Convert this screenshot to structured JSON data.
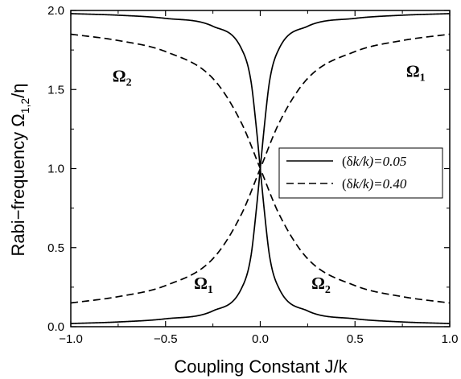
{
  "chart_data": {
    "type": "line",
    "xlabel": "Coupling Constant J/k",
    "ylabel": {
      "prefix": "Rabi−frequency ",
      "symbol": "Ω",
      "subscript": "1,2",
      "suffix": "/η"
    },
    "xlim": [
      -1.0,
      1.0
    ],
    "ylim": [
      0.0,
      2.0
    ],
    "x_ticks": [
      "−1.0",
      "−0.5",
      "0.0",
      "0.5",
      "1.0"
    ],
    "y_ticks": [
      "0.0",
      "0.5",
      "1.0",
      "1.5",
      "2.0"
    ],
    "grid": false,
    "legend_position": "center-right",
    "legend": [
      {
        "style": "solid",
        "open": "(δ",
        "italic": "k/k",
        "close": ")=0.05"
      },
      {
        "style": "dashed",
        "open": "(δ",
        "italic": "k/k",
        "close": ")=0.40"
      }
    ],
    "series": [
      {
        "label": "Ω1, (δk/k)=0.05",
        "style": "solid",
        "x": [
          -1.0,
          -0.75,
          -0.5,
          -0.25,
          -0.1,
          -0.05,
          -0.02,
          0.0,
          0.02,
          0.05,
          0.1,
          0.25,
          0.5,
          0.75,
          1.0
        ],
        "y": [
          0.02,
          0.03,
          0.05,
          0.1,
          0.24,
          0.44,
          0.75,
          1.0,
          1.25,
          1.56,
          1.76,
          1.9,
          1.95,
          1.97,
          1.98
        ]
      },
      {
        "label": "Ω2, (δk/k)=0.05",
        "style": "solid",
        "x": [
          -1.0,
          -0.75,
          -0.5,
          -0.25,
          -0.1,
          -0.05,
          -0.02,
          0.0,
          0.02,
          0.05,
          0.1,
          0.25,
          0.5,
          0.75,
          1.0
        ],
        "y": [
          1.98,
          1.97,
          1.95,
          1.9,
          1.76,
          1.56,
          1.25,
          1.0,
          0.75,
          0.44,
          0.24,
          0.1,
          0.05,
          0.03,
          0.02
        ]
      },
      {
        "label": "Ω1, (δk/k)=0.40",
        "style": "dashed",
        "x": [
          -1.0,
          -0.75,
          -0.5,
          -0.25,
          -0.1,
          0.0,
          0.1,
          0.25,
          0.5,
          0.75,
          1.0
        ],
        "y": [
          0.15,
          0.19,
          0.26,
          0.43,
          0.71,
          1.0,
          1.29,
          1.57,
          1.74,
          1.81,
          1.85
        ]
      },
      {
        "label": "Ω2, (δk/k)=0.40",
        "style": "dashed",
        "x": [
          -1.0,
          -0.75,
          -0.5,
          -0.25,
          -0.1,
          0.0,
          0.1,
          0.25,
          0.5,
          0.75,
          1.0
        ],
        "y": [
          1.85,
          1.81,
          1.74,
          1.57,
          1.29,
          1.0,
          0.71,
          0.43,
          0.26,
          0.19,
          0.15
        ]
      }
    ],
    "annotations": [
      {
        "symbol": "Ω",
        "subscript": "2",
        "x": -0.78,
        "y": 1.55
      },
      {
        "symbol": "Ω",
        "subscript": "1",
        "x": 0.77,
        "y": 1.58
      },
      {
        "symbol": "Ω",
        "subscript": "1",
        "x": -0.35,
        "y": 0.24
      },
      {
        "symbol": "Ω",
        "subscript": "2",
        "x": 0.27,
        "y": 0.24
      }
    ]
  }
}
